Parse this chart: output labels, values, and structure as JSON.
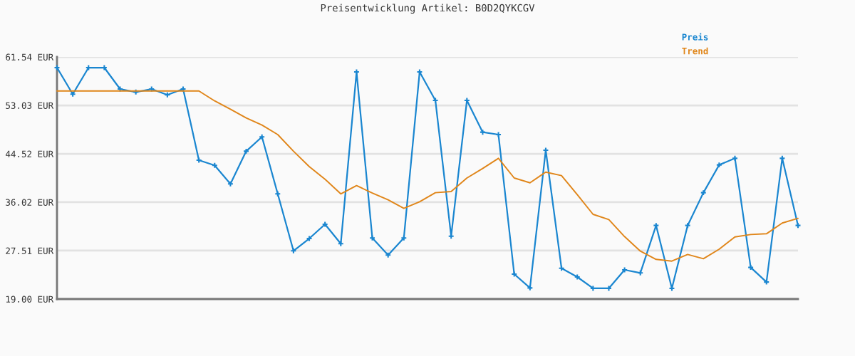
{
  "chart_data": {
    "type": "line",
    "title": "Preisentwicklung Artikel: B0D2QYKCGV",
    "categories": [
      null,
      null,
      null,
      null,
      null,
      null,
      null,
      null,
      null,
      null,
      null,
      null,
      null,
      null,
      null,
      null,
      null,
      null,
      null,
      null,
      null,
      null,
      null,
      null,
      null,
      null,
      null,
      null,
      null,
      null,
      null,
      null,
      null,
      null,
      null,
      null,
      null,
      null,
      null,
      null,
      null,
      null,
      null,
      null,
      null,
      null,
      null,
      null
    ],
    "series": [
      {
        "name": "Preis",
        "color": "#1a86d0",
        "marker": "cross",
        "values": [
          59.66,
          55.0,
          59.66,
          59.66,
          55.91,
          55.37,
          55.91,
          54.87,
          55.91,
          43.4,
          42.49,
          39.23,
          44.98,
          47.49,
          37.48,
          27.47,
          29.63,
          32.14,
          28.72,
          58.91,
          29.72,
          26.72,
          29.72,
          58.91,
          53.91,
          30.05,
          53.91,
          48.32,
          47.9,
          23.38,
          20.96,
          45.15,
          24.42,
          22.88,
          20.88,
          20.88,
          24.13,
          23.59,
          31.93,
          20.88,
          31.93,
          37.69,
          42.57,
          43.73,
          24.55,
          21.99,
          43.73,
          31.93
        ]
      },
      {
        "name": "Trend",
        "color": "#e0861a",
        "marker": "none",
        "values": [
          55.57,
          55.57,
          55.57,
          55.57,
          55.57,
          55.57,
          55.57,
          55.57,
          55.57,
          55.57,
          53.82,
          52.36,
          50.82,
          49.57,
          47.9,
          44.98,
          42.27,
          40.06,
          37.48,
          38.93,
          37.64,
          36.43,
          34.93,
          36.1,
          37.69,
          37.89,
          40.27,
          41.94,
          43.73,
          40.27,
          39.43,
          41.31,
          40.69,
          37.35,
          33.89,
          32.97,
          29.97,
          27.42,
          25.97,
          25.67,
          26.84,
          26.09,
          27.76,
          29.92,
          30.34,
          30.47,
          32.35,
          33.18
        ]
      }
    ],
    "ylim": [
      19.0,
      61.54
    ],
    "yticks": [
      {
        "value": 19.0,
        "label": "19.00 EUR"
      },
      {
        "value": 27.51,
        "label": "27.51 EUR"
      },
      {
        "value": 36.02,
        "label": "36.02 EUR"
      },
      {
        "value": 44.52,
        "label": "44.52 EUR"
      },
      {
        "value": 53.03,
        "label": "53.03 EUR"
      },
      {
        "value": 61.54,
        "label": "61.54 EUR"
      }
    ],
    "grid": "y",
    "legend": "top right",
    "line_style": "solid"
  }
}
